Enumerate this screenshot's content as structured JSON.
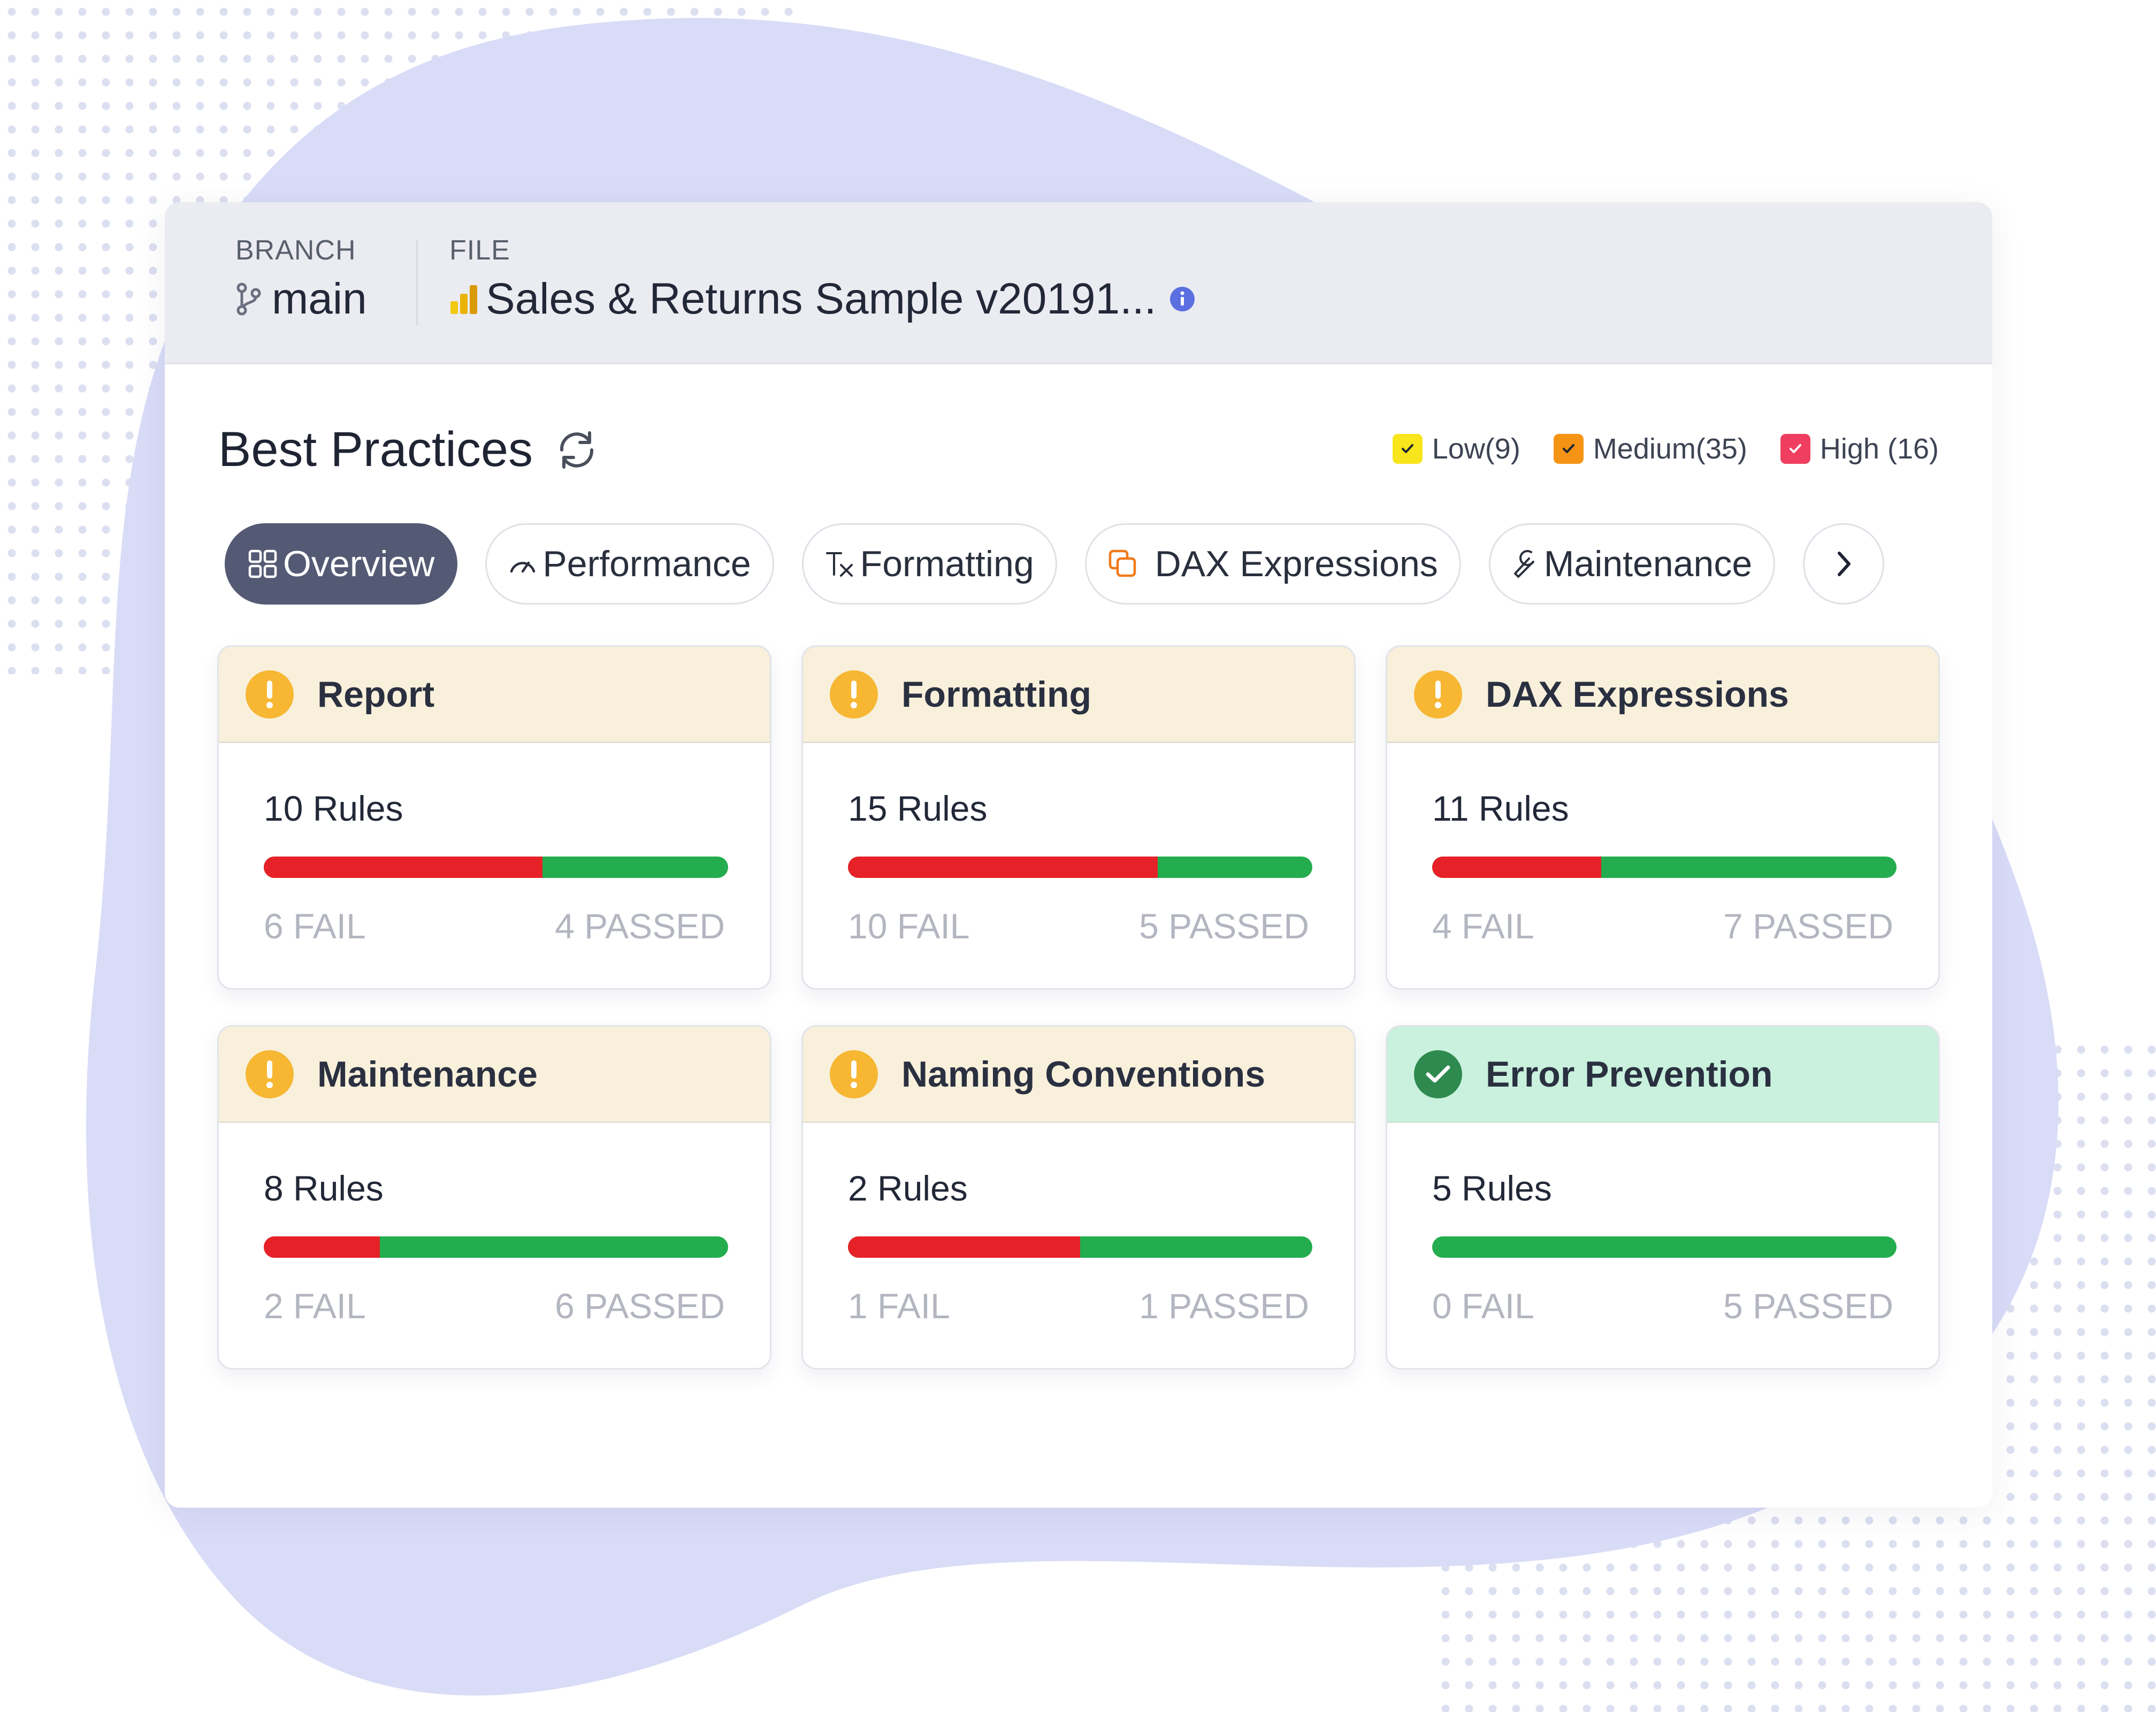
{
  "header": {
    "branch_label": "BRANCH",
    "branch_value": "main",
    "branch_icon": "git-branch-icon",
    "file_label": "FILE",
    "file_value": "Sales & Returns Sample v20191...",
    "file_icon": "power-bi-icon",
    "info_icon": "info-icon"
  },
  "section": {
    "title": "Best Practices",
    "refresh_icon": "refresh-icon"
  },
  "legend": [
    {
      "label": "Low(9)",
      "color": "#f8e51b"
    },
    {
      "label": "Medium(35)",
      "color": "#f59314"
    },
    {
      "label": "High (16)",
      "color": "#ef3e5f"
    }
  ],
  "tabs": [
    {
      "label": "Overview",
      "icon": "grid-icon",
      "active": true
    },
    {
      "label": "Performance",
      "icon": "speedometer-icon",
      "active": false
    },
    {
      "label": "Formatting",
      "icon": "clear-format-icon",
      "active": false
    },
    {
      "label": "DAX Expressions",
      "icon": "copy-icon",
      "active": false
    },
    {
      "label": "Maintenance",
      "icon": "wrench-icon",
      "active": false
    }
  ],
  "next_icon": "chevron-right-icon",
  "cards": [
    {
      "title": "Report",
      "status": "warning",
      "rules": "10 Rules",
      "fail": "6 FAIL",
      "passed": "4 PASSED",
      "fail_count": 6,
      "pass_count": 4
    },
    {
      "title": "Formatting",
      "status": "warning",
      "rules": "15 Rules",
      "fail": "10 FAIL",
      "passed": "5 PASSED",
      "fail_count": 10,
      "pass_count": 5
    },
    {
      "title": "DAX Expressions",
      "status": "warning",
      "rules": "11 Rules",
      "fail": "4 FAIL",
      "passed": "7 PASSED",
      "fail_count": 4,
      "pass_count": 7
    },
    {
      "title": "Maintenance",
      "status": "warning",
      "rules": "8 Rules",
      "fail": "2 FAIL",
      "passed": "6 PASSED",
      "fail_count": 2,
      "pass_count": 6
    },
    {
      "title": "Naming Conventions",
      "status": "warning",
      "rules": "2 Rules",
      "fail": "1 FAIL",
      "passed": "1 PASSED",
      "fail_count": 1,
      "pass_count": 1
    },
    {
      "title": "Error Prevention",
      "status": "passed",
      "rules": "5 Rules",
      "fail": "0 FAIL",
      "passed": "5 PASSED",
      "fail_count": 0,
      "pass_count": 5
    }
  ],
  "colors": {
    "fail": "#e62228",
    "pass": "#23ad4e",
    "warning": "#f7b733",
    "passed_icon": "#2f8a4f",
    "active_tab": "#545a74"
  }
}
